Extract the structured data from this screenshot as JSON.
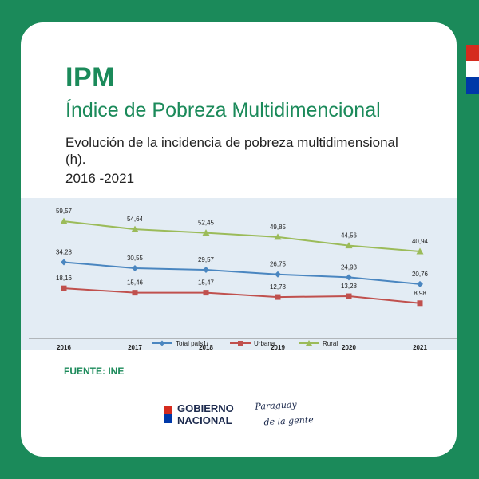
{
  "header": {
    "title": "IPM",
    "subtitle": "Índice de Pobreza Multidimencional",
    "description": "Evolución de la incidencia de pobreza multidimensional (h).",
    "period": "2016 -2021"
  },
  "source": "FUENTE: INE",
  "logos": {
    "gobierno_line1": "GOBIERNO",
    "gobierno_line2": "NACIONAL",
    "slogan_line1": "Paraguay",
    "slogan_line2": "de la gente"
  },
  "colors": {
    "brand_green": "#1b8a5a",
    "flag_red": "#d52b1e",
    "flag_white": "#ffffff",
    "flag_blue": "#0038a8",
    "chart_bg": "#e3ecf4"
  },
  "chart_data": {
    "type": "line",
    "categories": [
      "2016",
      "2017",
      "2018",
      "2019",
      "2020",
      "2021"
    ],
    "series": [
      {
        "name": "Total país1/",
        "color": "#4a86c0",
        "marker": "diamond",
        "values": [
          34.28,
          30.55,
          29.57,
          26.75,
          24.93,
          20.76
        ],
        "labels": [
          "34,28",
          "30,55",
          "29,57",
          "26,75",
          "24,93",
          "20,76"
        ]
      },
      {
        "name": "Urbana",
        "color": "#c0504d",
        "marker": "square",
        "values": [
          18.16,
          15.46,
          15.47,
          12.78,
          13.28,
          8.98
        ],
        "labels": [
          "18,16",
          "15,46",
          "15,47",
          "12,78",
          "13,28",
          "8,98"
        ]
      },
      {
        "name": "Rural",
        "color": "#9bbb59",
        "marker": "triangle",
        "values": [
          59.57,
          54.64,
          52.45,
          49.85,
          44.56,
          40.94
        ],
        "labels": [
          "59,57",
          "54,64",
          "52,45",
          "49,85",
          "44,56",
          "40,94"
        ]
      }
    ],
    "ylim": [
      0,
      70
    ],
    "grid": false,
    "legend": "bottom",
    "title": "",
    "xlabel": "",
    "ylabel": ""
  }
}
